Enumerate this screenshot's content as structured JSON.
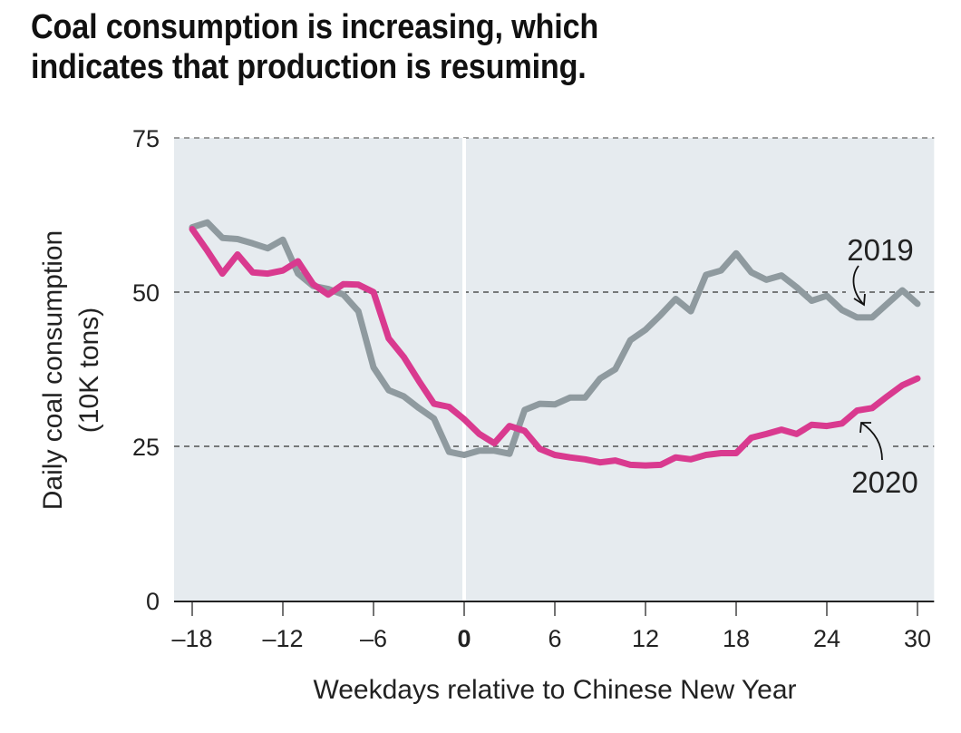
{
  "title_line1": "Coal consumption is increasing, which",
  "title_line2": "indicates that production is resuming.",
  "colors": {
    "background_plot": "#e6ebef",
    "series_2019": "#8f9a9f",
    "series_2020": "#d93a8f",
    "grid": "#333333",
    "text": "#222222"
  },
  "chart_data": {
    "type": "line",
    "title": "Coal consumption is increasing, which indicates that production is resuming.",
    "xlabel": "Weekdays relative to Chinese New Year",
    "ylabel": "Daily coal consumption",
    "ylabel_line2": "(10K tons)",
    "xlim": [
      -19.2,
      31.1
    ],
    "ylim": [
      0,
      75
    ],
    "xticks": [
      -18,
      -12,
      -6,
      0,
      6,
      12,
      18,
      24,
      30
    ],
    "xtick_labels": [
      "–18",
      "–12",
      "–6",
      "0",
      "6",
      "12",
      "18",
      "24",
      "30"
    ],
    "yticks": [
      0,
      25,
      50,
      75
    ],
    "ytick_labels": [
      "0",
      "25",
      "50",
      "75"
    ],
    "grid": "horizontal dashed at 25, 50, 75",
    "reference_line_x": 0,
    "x": [
      -18,
      -17,
      -16,
      -15,
      -14,
      -13,
      -12,
      -11,
      -10,
      -9,
      -8,
      -7,
      -6,
      -5,
      -4,
      -3,
      -2,
      -1,
      0,
      1,
      2,
      3,
      4,
      5,
      6,
      7,
      8,
      9,
      10,
      11,
      12,
      13,
      14,
      15,
      16,
      17,
      18,
      19,
      20,
      21,
      22,
      23,
      24,
      25,
      26,
      27,
      28,
      29,
      30
    ],
    "series": [
      {
        "name": "2019",
        "values": [
          60.5,
          61.3,
          58.8,
          58.6,
          57.9,
          57.1,
          58.5,
          53.0,
          51.0,
          50.5,
          49.6,
          46.9,
          37.8,
          34.1,
          33.1,
          31.2,
          29.5,
          24.1,
          23.6,
          24.3,
          24.3,
          23.8,
          30.9,
          31.9,
          31.8,
          32.9,
          32.9,
          36.0,
          37.5,
          42.2,
          43.9,
          46.3,
          48.9,
          46.9,
          52.8,
          53.5,
          56.3,
          53.2,
          52.0,
          52.7,
          50.8,
          48.6,
          49.4,
          47.1,
          45.9,
          45.9,
          48.1,
          50.3,
          48.1
        ]
      },
      {
        "name": "2020",
        "values": [
          60.2,
          56.7,
          53.0,
          56.1,
          53.2,
          53.0,
          53.5,
          55.0,
          51.3,
          49.6,
          51.3,
          51.2,
          50.0,
          42.5,
          39.5,
          35.6,
          31.9,
          31.4,
          29.4,
          27.0,
          25.5,
          28.3,
          27.5,
          24.6,
          23.6,
          23.2,
          22.9,
          22.4,
          22.7,
          22.0,
          21.9,
          22.0,
          23.2,
          22.9,
          23.6,
          23.9,
          23.9,
          26.4,
          27.0,
          27.7,
          27.0,
          28.5,
          28.3,
          28.7,
          30.8,
          31.2,
          33.1,
          34.9,
          36.0
        ]
      }
    ],
    "annotations": [
      {
        "text": "2019",
        "target_series": "2019",
        "points_to_x": 26
      },
      {
        "text": "2020",
        "target_series": "2020",
        "points_to_x": 26
      }
    ],
    "legend": "none (direct labels on right)"
  }
}
